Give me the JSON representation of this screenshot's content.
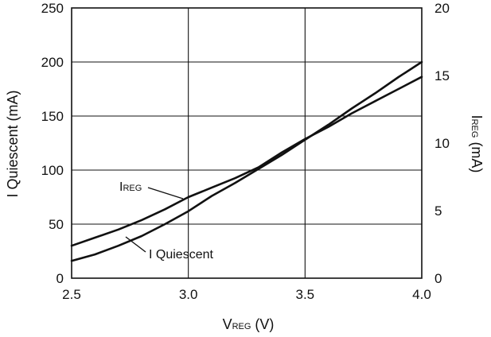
{
  "chart_data": {
    "type": "line",
    "x_axis": {
      "label_main": "V",
      "label_sub": "REG",
      "label_unit": " (V)",
      "range": [
        2.5,
        4.0
      ],
      "ticks": [
        "2.5",
        "3.0",
        "3.5",
        "4.0"
      ]
    },
    "y_axis_left": {
      "label": "I Quiescent (mA)",
      "range": [
        0,
        250
      ],
      "ticks": [
        "0",
        "50",
        "100",
        "150",
        "200",
        "250"
      ]
    },
    "y_axis_right": {
      "label_main": "I",
      "label_sub": "REG",
      "label_unit": " (mA)",
      "range": [
        0,
        20
      ],
      "ticks": [
        "0",
        "5",
        "10",
        "15",
        "20"
      ]
    },
    "grid": true,
    "series": [
      {
        "name": "I Quiescent",
        "axis": "left",
        "x": [
          2.5,
          2.6,
          2.7,
          2.8,
          2.9,
          3.0,
          3.1,
          3.2,
          3.3,
          3.4,
          3.5,
          3.6,
          3.7,
          3.8,
          3.9,
          4.0
        ],
        "y": [
          16,
          22,
          30,
          39,
          50,
          62,
          76,
          88,
          101,
          114,
          128,
          142,
          157,
          171,
          186,
          200
        ]
      },
      {
        "name": "I REG",
        "axis": "right",
        "x": [
          2.5,
          2.6,
          2.7,
          2.8,
          2.9,
          3.0,
          3.1,
          3.2,
          3.3,
          3.4,
          3.5,
          3.6,
          3.7,
          3.8,
          3.9,
          4.0
        ],
        "y": [
          2.4,
          3.0,
          3.6,
          4.3,
          5.1,
          6.0,
          6.7,
          7.4,
          8.2,
          9.3,
          10.3,
          11.2,
          12.2,
          13.1,
          14.0,
          14.9
        ]
      }
    ],
    "annotations": [
      {
        "text_main": "I",
        "text_sub": "REG",
        "series": "I REG"
      },
      {
        "text_main": "I Quiescent",
        "series": "I Quiescent"
      }
    ]
  }
}
